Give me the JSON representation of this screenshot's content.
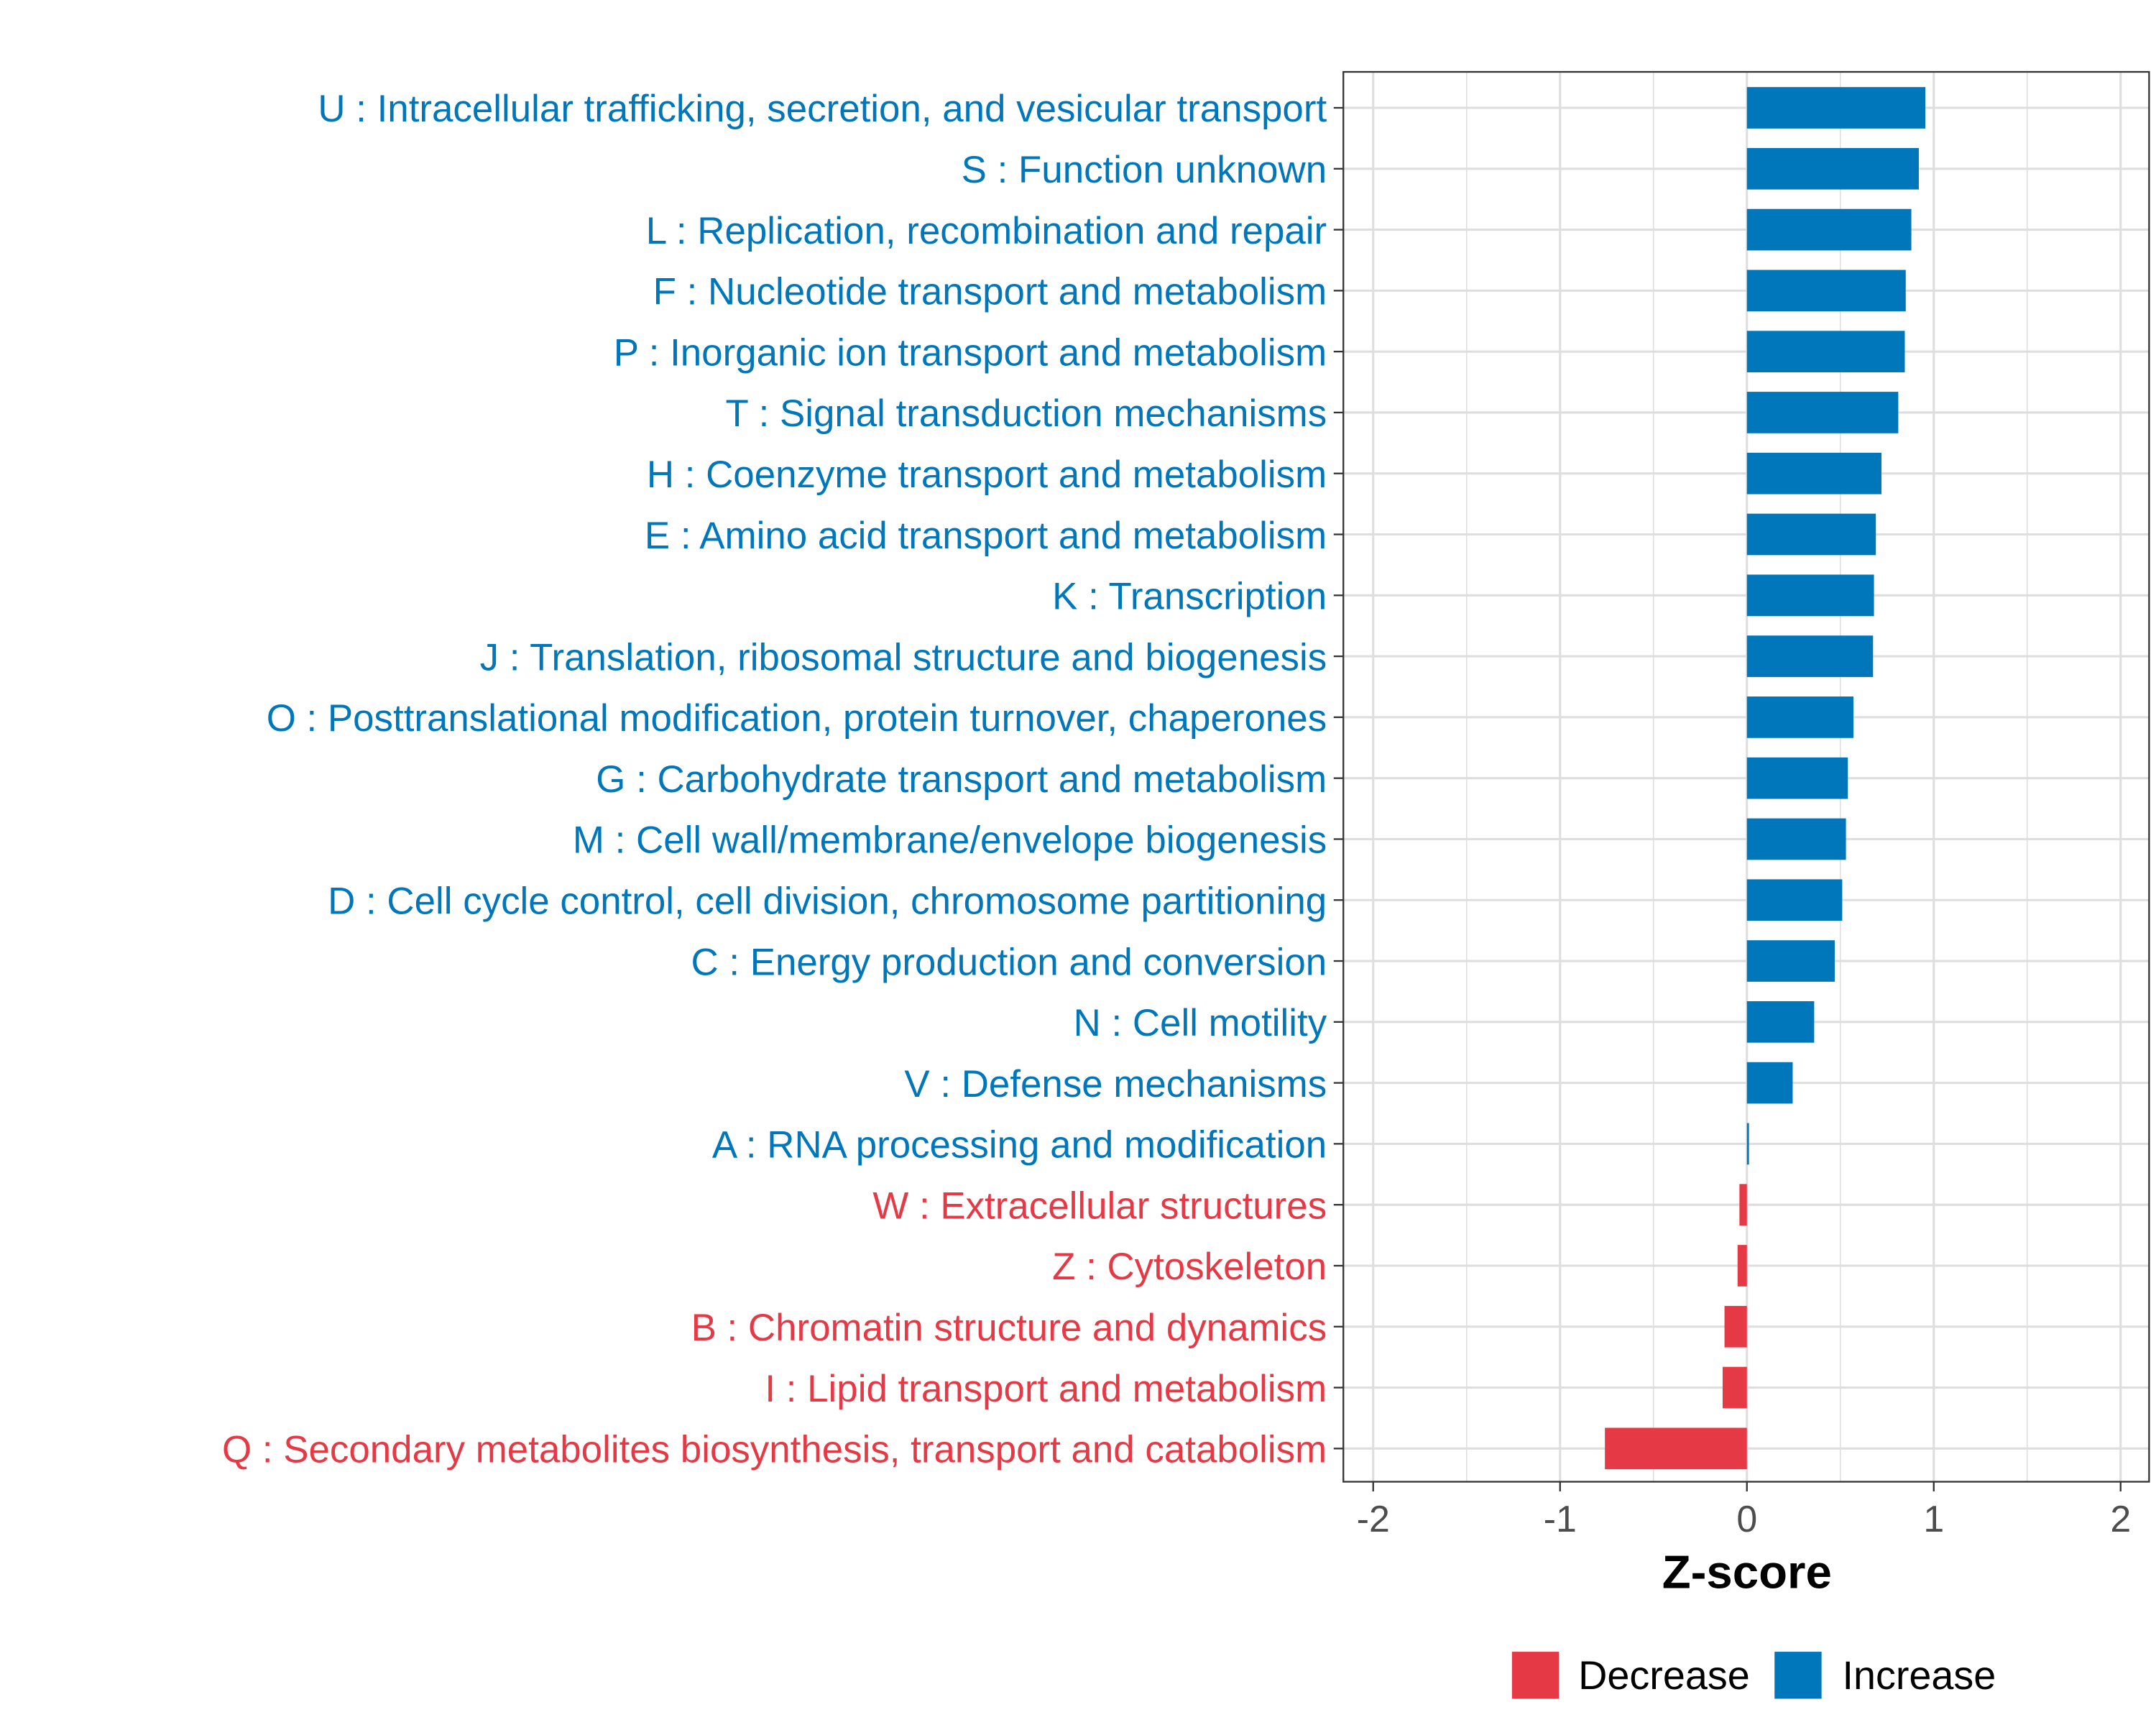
{
  "chart_data": {
    "type": "bar",
    "orientation": "horizontal",
    "title": "",
    "xlabel": "Z-score",
    "ylabel": "",
    "xlim": [
      -2.15,
      2.15
    ],
    "xticks": [
      -2,
      -1,
      0,
      1,
      2
    ],
    "xtick_labels": [
      "-2",
      "-1",
      "0",
      "1",
      "2"
    ],
    "grid": true,
    "legend_position": "bottom",
    "colors": {
      "Decrease": "#e63946",
      "Increase": "#0077bb"
    },
    "legend": [
      {
        "label": "Decrease",
        "color": "#e63946"
      },
      {
        "label": "Increase",
        "color": "#0077bb"
      }
    ],
    "categories": [
      "U : Intracellular trafficking, secretion, and vesicular transport",
      "S : Function unknown",
      "L : Replication, recombination and repair",
      "F : Nucleotide transport and metabolism",
      "P : Inorganic ion transport and metabolism",
      "T : Signal transduction mechanisms",
      "H : Coenzyme transport and metabolism",
      "E : Amino acid transport and metabolism",
      "K : Transcription",
      "J : Translation, ribosomal structure and biogenesis",
      "O : Posttranslational modification, protein turnover, chaperones",
      "G : Carbohydrate transport and metabolism",
      "M : Cell wall/membrane/envelope biogenesis",
      "D : Cell cycle control, cell division, chromosome partitioning",
      "C : Energy production and conversion",
      "N : Cell motility",
      "V : Defense mechanisms",
      "A : RNA processing and modification",
      "W : Extracellular structures",
      "Z : Cytoskeleton",
      "B : Chromatin structure and dynamics",
      "I : Lipid transport and metabolism",
      "Q : Secondary metabolites biosynthesis, transport and catabolism"
    ],
    "values": [
      0.955,
      0.92,
      0.88,
      0.85,
      0.845,
      0.81,
      0.72,
      0.69,
      0.68,
      0.675,
      0.57,
      0.54,
      0.53,
      0.51,
      0.47,
      0.36,
      0.245,
      0.01,
      -0.04,
      -0.05,
      -0.12,
      -0.13,
      -0.76
    ]
  }
}
